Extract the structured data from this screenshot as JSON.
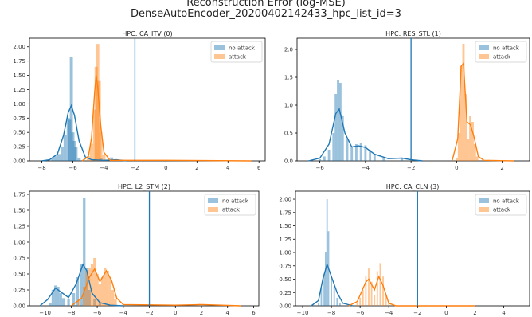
{
  "suptitle": {
    "line1": "Reconstruction Error (log-MSE)",
    "line2": "DenseAutoEncoder_20200402142433_hpc_list_id=3"
  },
  "colors": {
    "no_attack": "#1f77b4",
    "attack": "#ff7f0e",
    "threshold": "#1f77b4"
  },
  "chart_data": [
    {
      "type": "histogram",
      "title": "HPC: CA_ITV (0)",
      "xlim": [
        -8.8,
        6.4
      ],
      "ylim": [
        0,
        2.15
      ],
      "xticks": [
        -8,
        -6,
        -4,
        -2,
        0,
        2,
        4,
        6
      ],
      "yticks": [
        0.0,
        0.25,
        0.5,
        0.75,
        1.0,
        1.25,
        1.5,
        1.75,
        2.0
      ],
      "ytick_labels": [
        "0.00",
        "0.25",
        "0.50",
        "0.75",
        "1.00",
        "1.25",
        "1.50",
        "1.75",
        "2.00"
      ],
      "threshold": -2.0,
      "legend": [
        "no attack",
        "attack"
      ],
      "legend_loc": "upper right",
      "series": [
        {
          "name": "no attack",
          "bins": [
            [
              -7.3,
              0.05
            ],
            [
              -7.1,
              0.08
            ],
            [
              -6.9,
              0.12
            ],
            [
              -6.7,
              0.25
            ],
            [
              -6.5,
              0.45
            ],
            [
              -6.3,
              0.75
            ],
            [
              -6.2,
              0.72
            ],
            [
              -6.1,
              1.82
            ],
            [
              -6.0,
              0.5
            ],
            [
              -5.9,
              0.35
            ],
            [
              -5.8,
              0.25
            ],
            [
              -5.6,
              0.05
            ],
            [
              -4.2,
              0.05
            ],
            [
              -3.5,
              0.06
            ]
          ],
          "kde": [
            [
              -8.0,
              0.0
            ],
            [
              -7.5,
              0.02
            ],
            [
              -7.0,
              0.12
            ],
            [
              -6.6,
              0.45
            ],
            [
              -6.3,
              0.85
            ],
            [
              -6.1,
              0.97
            ],
            [
              -5.9,
              0.8
            ],
            [
              -5.6,
              0.35
            ],
            [
              -5.2,
              0.07
            ],
            [
              -4.8,
              0.02
            ],
            [
              -4.0,
              0.01
            ],
            [
              -3.2,
              0.02
            ],
            [
              -2.5,
              0.0
            ]
          ]
        },
        {
          "name": "attack",
          "bins": [
            [
              -5.0,
              0.08
            ],
            [
              -4.8,
              0.3
            ],
            [
              -4.6,
              0.9
            ],
            [
              -4.5,
              1.65
            ],
            [
              -4.4,
              2.05
            ],
            [
              -4.3,
              1.4
            ],
            [
              -4.2,
              0.5
            ],
            [
              -4.0,
              0.1
            ]
          ],
          "kde": [
            [
              -5.4,
              0.0
            ],
            [
              -5.0,
              0.08
            ],
            [
              -4.8,
              0.4
            ],
            [
              -4.6,
              1.2
            ],
            [
              -4.5,
              1.5
            ],
            [
              -4.4,
              1.3
            ],
            [
              -4.2,
              0.6
            ],
            [
              -4.0,
              0.15
            ],
            [
              -3.6,
              0.01
            ],
            [
              0.0,
              0.01
            ],
            [
              5.5,
              0.0
            ]
          ]
        }
      ]
    },
    {
      "type": "histogram",
      "title": "HPC: RES_STL (1)",
      "xlim": [
        -7.0,
        3.2
      ],
      "ylim": [
        0,
        2.2
      ],
      "xticks": [
        -6,
        -4,
        -2,
        0,
        2
      ],
      "yticks": [
        0.0,
        0.5,
        1.0,
        1.5,
        2.0
      ],
      "ytick_labels": [
        "0.0",
        "0.5",
        "1.0",
        "1.5",
        "2.0"
      ],
      "threshold": -2.0,
      "legend": [
        "no attack",
        "attack"
      ],
      "legend_loc": "upper right",
      "series": [
        {
          "name": "no attack",
          "bins": [
            [
              -6.0,
              0.03
            ],
            [
              -5.8,
              0.08
            ],
            [
              -5.6,
              0.2
            ],
            [
              -5.4,
              0.5
            ],
            [
              -5.3,
              1.2
            ],
            [
              -5.2,
              1.45
            ],
            [
              -5.1,
              1.4
            ],
            [
              -5.0,
              0.8
            ],
            [
              -4.8,
              0.4
            ],
            [
              -4.6,
              0.25
            ],
            [
              -4.4,
              0.3
            ],
            [
              -4.2,
              0.32
            ],
            [
              -4.0,
              0.28
            ],
            [
              -3.8,
              0.2
            ],
            [
              -3.6,
              0.12
            ],
            [
              -3.2,
              0.05
            ],
            [
              -2.4,
              0.05
            ]
          ],
          "kde": [
            [
              -6.5,
              0.0
            ],
            [
              -6.0,
              0.05
            ],
            [
              -5.6,
              0.3
            ],
            [
              -5.3,
              0.85
            ],
            [
              -5.15,
              0.93
            ],
            [
              -4.9,
              0.5
            ],
            [
              -4.6,
              0.25
            ],
            [
              -4.3,
              0.27
            ],
            [
              -4.0,
              0.24
            ],
            [
              -3.6,
              0.12
            ],
            [
              -3.0,
              0.04
            ],
            [
              -2.4,
              0.05
            ],
            [
              -2.0,
              0.02
            ],
            [
              -1.5,
              0.0
            ]
          ]
        },
        {
          "name": "attack",
          "bins": [
            [
              0.0,
              0.05
            ],
            [
              0.1,
              0.5
            ],
            [
              0.2,
              1.7
            ],
            [
              0.3,
              2.1
            ],
            [
              0.4,
              1.2
            ],
            [
              0.5,
              0.4
            ],
            [
              0.6,
              0.8
            ],
            [
              0.7,
              0.7
            ],
            [
              0.8,
              0.3
            ],
            [
              0.9,
              0.08
            ]
          ],
          "kde": [
            [
              -0.2,
              0.0
            ],
            [
              0.05,
              0.4
            ],
            [
              0.2,
              1.7
            ],
            [
              0.3,
              1.75
            ],
            [
              0.45,
              0.7
            ],
            [
              0.6,
              0.65
            ],
            [
              0.75,
              0.45
            ],
            [
              0.95,
              0.08
            ],
            [
              1.2,
              0.01
            ],
            [
              2.5,
              0.0
            ]
          ]
        }
      ]
    },
    {
      "type": "histogram",
      "title": "HPC: L2_STM (2)",
      "xlim": [
        -11.2,
        6.4
      ],
      "ylim": [
        0,
        1.8
      ],
      "xticks": [
        -10,
        -8,
        -6,
        -4,
        -2,
        0,
        2,
        4,
        6
      ],
      "yticks": [
        0.0,
        0.25,
        0.5,
        0.75,
        1.0,
        1.25,
        1.5,
        1.75
      ],
      "ytick_labels": [
        "0.00",
        "0.25",
        "0.50",
        "0.75",
        "1.00",
        "1.25",
        "1.50",
        "1.75"
      ],
      "threshold": -2.0,
      "legend": [
        "no attack",
        "attack"
      ],
      "legend_loc": "upper right",
      "series": [
        {
          "name": "no attack",
          "bins": [
            [
              -9.6,
              0.05
            ],
            [
              -9.4,
              0.25
            ],
            [
              -9.2,
              0.32
            ],
            [
              -9.0,
              0.3
            ],
            [
              -8.8,
              0.2
            ],
            [
              -8.6,
              0.12
            ],
            [
              -8.2,
              0.1
            ],
            [
              -7.8,
              0.2
            ],
            [
              -7.5,
              0.45
            ],
            [
              -7.2,
              0.65
            ],
            [
              -7.0,
              1.7
            ],
            [
              -6.8,
              0.6
            ],
            [
              -6.6,
              0.25
            ],
            [
              -6.2,
              0.1
            ],
            [
              -5.8,
              0.05
            ]
          ],
          "kde": [
            [
              -10.4,
              0.0
            ],
            [
              -9.8,
              0.1
            ],
            [
              -9.2,
              0.28
            ],
            [
              -8.8,
              0.22
            ],
            [
              -8.2,
              0.13
            ],
            [
              -7.6,
              0.35
            ],
            [
              -7.1,
              0.65
            ],
            [
              -6.8,
              0.55
            ],
            [
              -6.4,
              0.2
            ],
            [
              -5.8,
              0.05
            ],
            [
              -5.0,
              0.01
            ],
            [
              -4.0,
              0.0
            ]
          ]
        },
        {
          "name": "attack",
          "bins": [
            [
              -7.4,
              0.1
            ],
            [
              -7.0,
              0.3
            ],
            [
              -6.8,
              0.55
            ],
            [
              -6.6,
              0.6
            ],
            [
              -6.4,
              0.65
            ],
            [
              -6.2,
              0.75
            ],
            [
              -6.0,
              0.5
            ],
            [
              -5.8,
              0.35
            ],
            [
              -5.6,
              0.45
            ],
            [
              -5.4,
              0.6
            ],
            [
              -5.2,
              0.55
            ],
            [
              -5.0,
              0.45
            ],
            [
              -4.8,
              0.25
            ],
            [
              -4.6,
              0.1
            ],
            [
              1.8,
              0.03
            ]
          ],
          "kde": [
            [
              -8.0,
              0.0
            ],
            [
              -7.2,
              0.12
            ],
            [
              -6.6,
              0.45
            ],
            [
              -6.2,
              0.58
            ],
            [
              -5.8,
              0.38
            ],
            [
              -5.3,
              0.55
            ],
            [
              -4.9,
              0.4
            ],
            [
              -4.5,
              0.12
            ],
            [
              -4.0,
              0.02
            ],
            [
              0.0,
              0.01
            ],
            [
              2.0,
              0.02
            ],
            [
              5.0,
              0.0
            ]
          ]
        }
      ]
    },
    {
      "type": "histogram",
      "title": "HPC: CA_CLN (3)",
      "xlim": [
        -10.5,
        5.8
      ],
      "ylim": [
        0,
        2.15
      ],
      "xticks": [
        -10,
        -8,
        -6,
        -4,
        -2,
        0,
        2,
        4
      ],
      "yticks": [
        0.0,
        0.25,
        0.5,
        0.75,
        1.0,
        1.25,
        1.5,
        1.75,
        2.0
      ],
      "ytick_labels": [
        "0.00",
        "0.25",
        "0.50",
        "0.75",
        "1.00",
        "1.25",
        "1.50",
        "1.75",
        "2.00"
      ],
      "threshold": -2.0,
      "legend": [
        "no attack",
        "attack"
      ],
      "legend_loc": "upper right",
      "series": [
        {
          "name": "no attack",
          "bins": [
            [
              -8.9,
              0.05
            ],
            [
              -8.7,
              0.35
            ],
            [
              -8.5,
              0.6
            ],
            [
              -8.4,
              1.0
            ],
            [
              -8.3,
              2.0
            ],
            [
              -8.2,
              1.4
            ],
            [
              -8.0,
              0.55
            ],
            [
              -7.8,
              0.35
            ],
            [
              -7.6,
              0.15
            ],
            [
              -7.4,
              0.05
            ]
          ],
          "kde": [
            [
              -9.4,
              0.0
            ],
            [
              -8.9,
              0.1
            ],
            [
              -8.6,
              0.5
            ],
            [
              -8.3,
              0.78
            ],
            [
              -8.0,
              0.55
            ],
            [
              -7.6,
              0.25
            ],
            [
              -7.2,
              0.05
            ],
            [
              -6.5,
              0.0
            ]
          ]
        },
        {
          "name": "attack",
          "bins": [
            [
              -6.2,
              0.05
            ],
            [
              -6.0,
              0.15
            ],
            [
              -5.8,
              0.3
            ],
            [
              -5.6,
              0.55
            ],
            [
              -5.4,
              0.7
            ],
            [
              -5.2,
              0.45
            ],
            [
              -5.0,
              0.2
            ],
            [
              -4.8,
              0.65
            ],
            [
              -4.6,
              0.8
            ],
            [
              -4.4,
              0.55
            ],
            [
              -4.2,
              0.2
            ],
            [
              -4.0,
              0.05
            ]
          ],
          "kde": [
            [
              -6.8,
              0.0
            ],
            [
              -6.2,
              0.08
            ],
            [
              -5.6,
              0.45
            ],
            [
              -5.4,
              0.5
            ],
            [
              -5.0,
              0.3
            ],
            [
              -4.7,
              0.55
            ],
            [
              -4.4,
              0.38
            ],
            [
              -4.0,
              0.05
            ],
            [
              -3.5,
              0.0
            ],
            [
              2.0,
              0.0
            ]
          ]
        }
      ]
    }
  ]
}
